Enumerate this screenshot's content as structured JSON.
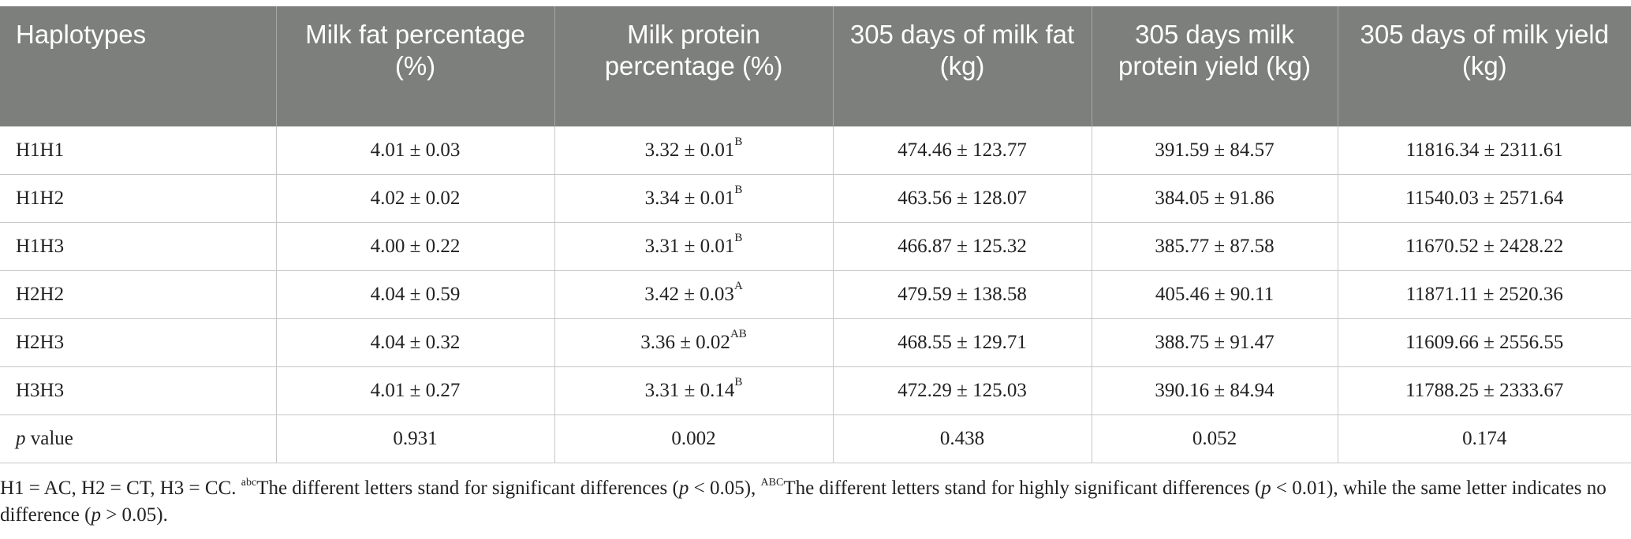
{
  "table": {
    "headers": [
      "Haplotypes",
      "Milk fat percentage (%)",
      "Milk protein percentage (%)",
      "305 days of milk fat (kg)",
      "305 days milk protein yield (kg)",
      "305 days of milk yield (kg)"
    ],
    "rows": [
      {
        "haplotype": "H1H1",
        "fat_pct": "4.01 ± 0.03",
        "protein_pct": "3.32 ± 0.01",
        "protein_sup": "B",
        "fat_kg": "474.46 ± 123.77",
        "protein_kg": "391.59 ± 84.57",
        "milk_kg": "11816.34 ± 2311.61"
      },
      {
        "haplotype": "H1H2",
        "fat_pct": "4.02 ± 0.02",
        "protein_pct": "3.34 ± 0.01",
        "protein_sup": "B",
        "fat_kg": "463.56 ± 128.07",
        "protein_kg": "384.05 ± 91.86",
        "milk_kg": "11540.03 ± 2571.64"
      },
      {
        "haplotype": "H1H3",
        "fat_pct": "4.00 ± 0.22",
        "protein_pct": "3.31 ± 0.01",
        "protein_sup": "B",
        "fat_kg": "466.87 ± 125.32",
        "protein_kg": "385.77 ± 87.58",
        "milk_kg": "11670.52 ± 2428.22"
      },
      {
        "haplotype": "H2H2",
        "fat_pct": "4.04 ± 0.59",
        "protein_pct": "3.42 ± 0.03",
        "protein_sup": "A",
        "fat_kg": "479.59 ± 138.58",
        "protein_kg": "405.46 ± 90.11",
        "milk_kg": "11871.11 ± 2520.36"
      },
      {
        "haplotype": "H2H3",
        "fat_pct": "4.04 ± 0.32",
        "protein_pct": "3.36 ± 0.02",
        "protein_sup": "AB",
        "fat_kg": "468.55 ± 129.71",
        "protein_kg": "388.75 ± 91.47",
        "milk_kg": "11609.66 ± 2556.55"
      },
      {
        "haplotype": "H3H3",
        "fat_pct": "4.01 ± 0.27",
        "protein_pct": "3.31 ± 0.14",
        "protein_sup": "B",
        "fat_kg": "472.29 ± 125.03",
        "protein_kg": "390.16 ± 84.94",
        "milk_kg": "11788.25 ± 2333.67"
      }
    ],
    "pvalue_row": {
      "label_italic": "p",
      "label_rest": " value",
      "fat_pct": "0.931",
      "protein_pct": "0.002",
      "fat_kg": "0.438",
      "protein_kg": "0.052",
      "milk_kg": "0.174"
    }
  },
  "footnote": {
    "intro": "H1 = AC, H2 = CT, H3 = CC. ",
    "sup_lower": "abc",
    "text_a": "The different letters stand for significant differences (",
    "p1": "p",
    "text_b": " < 0.05), ",
    "sup_upper": "ABC",
    "text_c": "The different letters stand for highly significant differences (",
    "p2": "p",
    "text_d": " < 0.01), while the same letter indicates no difference (",
    "p3": "p",
    "text_e": " > 0.05)."
  }
}
